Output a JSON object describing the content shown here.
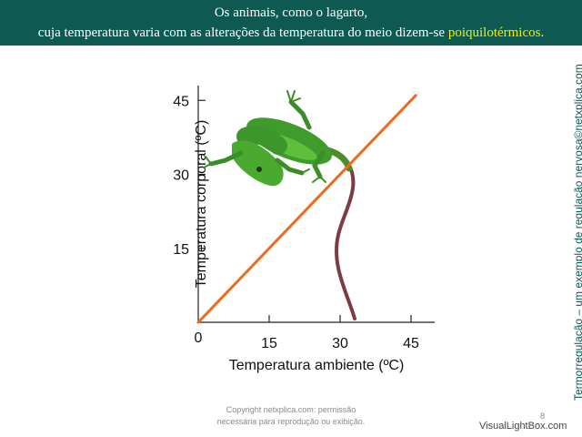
{
  "header": {
    "line1": "Os animais, como o lagarto,",
    "line2_prefix": "cuja temperatura varia com as alterações da temperatura do meio dizem-se ",
    "line2_highlight": "poiquilotérmicos",
    "line2_suffix": "."
  },
  "side_text": "Termorregulação – um exemplo de regulação nervosa©netxplica.com",
  "chart_data": {
    "type": "line",
    "xlabel": "Temperatura ambiente (ºC)",
    "ylabel": "Temperatura corporal (ºC)",
    "origin_label": "0",
    "x_ticks": [
      "15",
      "30",
      "45"
    ],
    "y_ticks": [
      "15",
      "30",
      "45"
    ],
    "xlim": [
      0,
      50
    ],
    "ylim": [
      0,
      48
    ],
    "grid": false,
    "series": [
      {
        "x": [
          0,
          46
        ],
        "y": [
          0,
          46
        ],
        "color": "#ee6a1e"
      }
    ],
    "illustration": "green-anole-lizard"
  },
  "copyright": {
    "line1": "Copyright netxplica.com: permissão",
    "line2": "necessária para reprodução ou exibição."
  },
  "page_number": "8",
  "watermark": "VisualLightBox.com"
}
